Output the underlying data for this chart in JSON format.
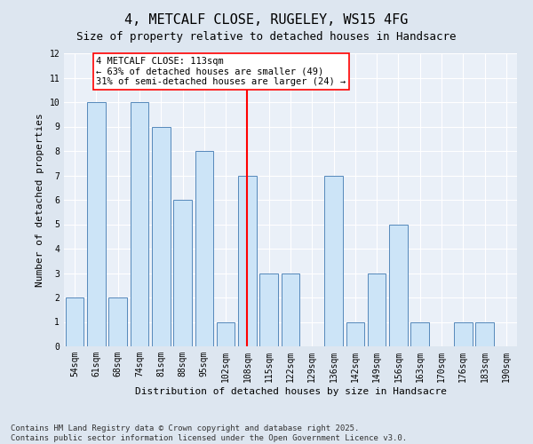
{
  "title": "4, METCALF CLOSE, RUGELEY, WS15 4FG",
  "subtitle": "Size of property relative to detached houses in Handsacre",
  "xlabel": "Distribution of detached houses by size in Handsacre",
  "ylabel": "Number of detached properties",
  "categories": [
    "54sqm",
    "61sqm",
    "68sqm",
    "74sqm",
    "81sqm",
    "88sqm",
    "95sqm",
    "102sqm",
    "108sqm",
    "115sqm",
    "122sqm",
    "129sqm",
    "136sqm",
    "142sqm",
    "149sqm",
    "156sqm",
    "163sqm",
    "170sqm",
    "176sqm",
    "183sqm",
    "190sqm"
  ],
  "values": [
    2,
    10,
    2,
    10,
    9,
    6,
    8,
    1,
    7,
    3,
    3,
    0,
    7,
    1,
    3,
    5,
    1,
    0,
    1,
    1,
    0
  ],
  "bar_color": "#cce4f7",
  "bar_edge_color": "#5588bb",
  "reference_line_index": 8,
  "annotation_text": "4 METCALF CLOSE: 113sqm\n← 63% of detached houses are smaller (49)\n31% of semi-detached houses are larger (24) →",
  "ylim": [
    0,
    12
  ],
  "yticks": [
    0,
    1,
    2,
    3,
    4,
    5,
    6,
    7,
    8,
    9,
    10,
    11,
    12
  ],
  "background_color": "#dde6f0",
  "plot_bg_color": "#eaf0f8",
  "footer": "Contains HM Land Registry data © Crown copyright and database right 2025.\nContains public sector information licensed under the Open Government Licence v3.0.",
  "title_fontsize": 11,
  "subtitle_fontsize": 9,
  "label_fontsize": 8,
  "tick_fontsize": 7,
  "footer_fontsize": 6.5,
  "annotation_fontsize": 7.5
}
